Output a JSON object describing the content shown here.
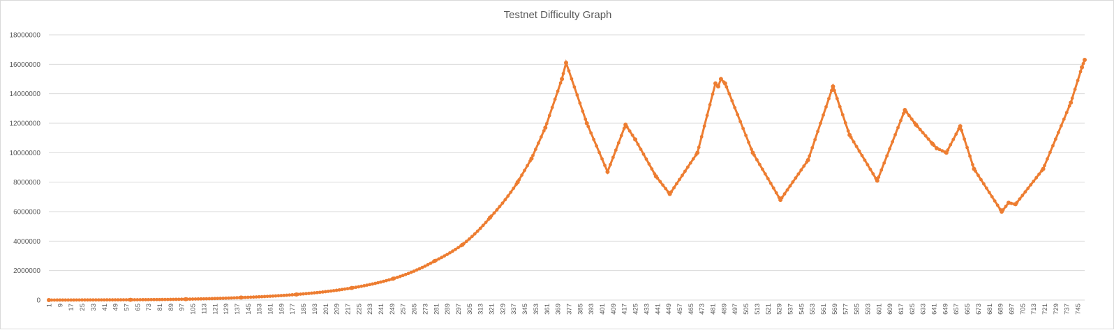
{
  "chart_data": {
    "type": "line",
    "title": "Testnet Difficulty Graph",
    "xlabel": "",
    "ylabel": "",
    "ylim": [
      0,
      18000000
    ],
    "xlim": [
      1,
      750
    ],
    "y_ticks": [
      "0",
      "2000000",
      "4000000",
      "6000000",
      "8000000",
      "10000000",
      "12000000",
      "14000000",
      "16000000",
      "18000000"
    ],
    "x_tick_step": 8,
    "x_ticks": [
      "1",
      "9",
      "17",
      "25",
      "33",
      "41",
      "49",
      "57",
      "65",
      "73",
      "81",
      "89",
      "97",
      "105",
      "113",
      "121",
      "129",
      "137",
      "145",
      "153",
      "161",
      "169",
      "177",
      "185",
      "193",
      "201",
      "209",
      "217",
      "225",
      "233",
      "241",
      "249",
      "257",
      "265",
      "273",
      "281",
      "289",
      "297",
      "305",
      "313",
      "321",
      "329",
      "337",
      "345",
      "353",
      "361",
      "369",
      "377",
      "385",
      "393",
      "401",
      "409",
      "417",
      "425",
      "433",
      "441",
      "449",
      "457",
      "465",
      "473",
      "481",
      "489",
      "497",
      "505",
      "513",
      "521",
      "529",
      "537",
      "545",
      "553",
      "561",
      "569",
      "577",
      "585",
      "593",
      "601",
      "609",
      "617",
      "625",
      "633",
      "641",
      "649",
      "657",
      "665",
      "673",
      "681",
      "689",
      "697",
      "705",
      "713",
      "721",
      "729",
      "737",
      "745"
    ],
    "grid": true,
    "legend": "none",
    "series_color": "#ED7D31",
    "marker": "circle",
    "series": [
      {
        "x": [
          1,
          60,
          100,
          140,
          180,
          220,
          250,
          280,
          300,
          320,
          340,
          350,
          360,
          372,
          375,
          390,
          405,
          418,
          425,
          440,
          450,
          470,
          483,
          485,
          487,
          490,
          510,
          530,
          550,
          568,
          580,
          600,
          620,
          628,
          640,
          643,
          650,
          660,
          670,
          690,
          695,
          700,
          720,
          740,
          748,
          750
        ],
        "values": [
          0,
          20000,
          60000,
          170000,
          380000,
          820000,
          1450000,
          2650000,
          3750000,
          5600000,
          8000000,
          9600000,
          11700000,
          15000000,
          16100000,
          12000000,
          8700000,
          11900000,
          10900000,
          8400000,
          7200000,
          10000000,
          14700000,
          14500000,
          15000000,
          14700000,
          10000000,
          6800000,
          9500000,
          14500000,
          11200000,
          8100000,
          12900000,
          11900000,
          10600000,
          10300000,
          10000000,
          11800000,
          8900000,
          6000000,
          6600000,
          6500000,
          8900000,
          13400000,
          15800000,
          16300000
        ]
      }
    ]
  }
}
